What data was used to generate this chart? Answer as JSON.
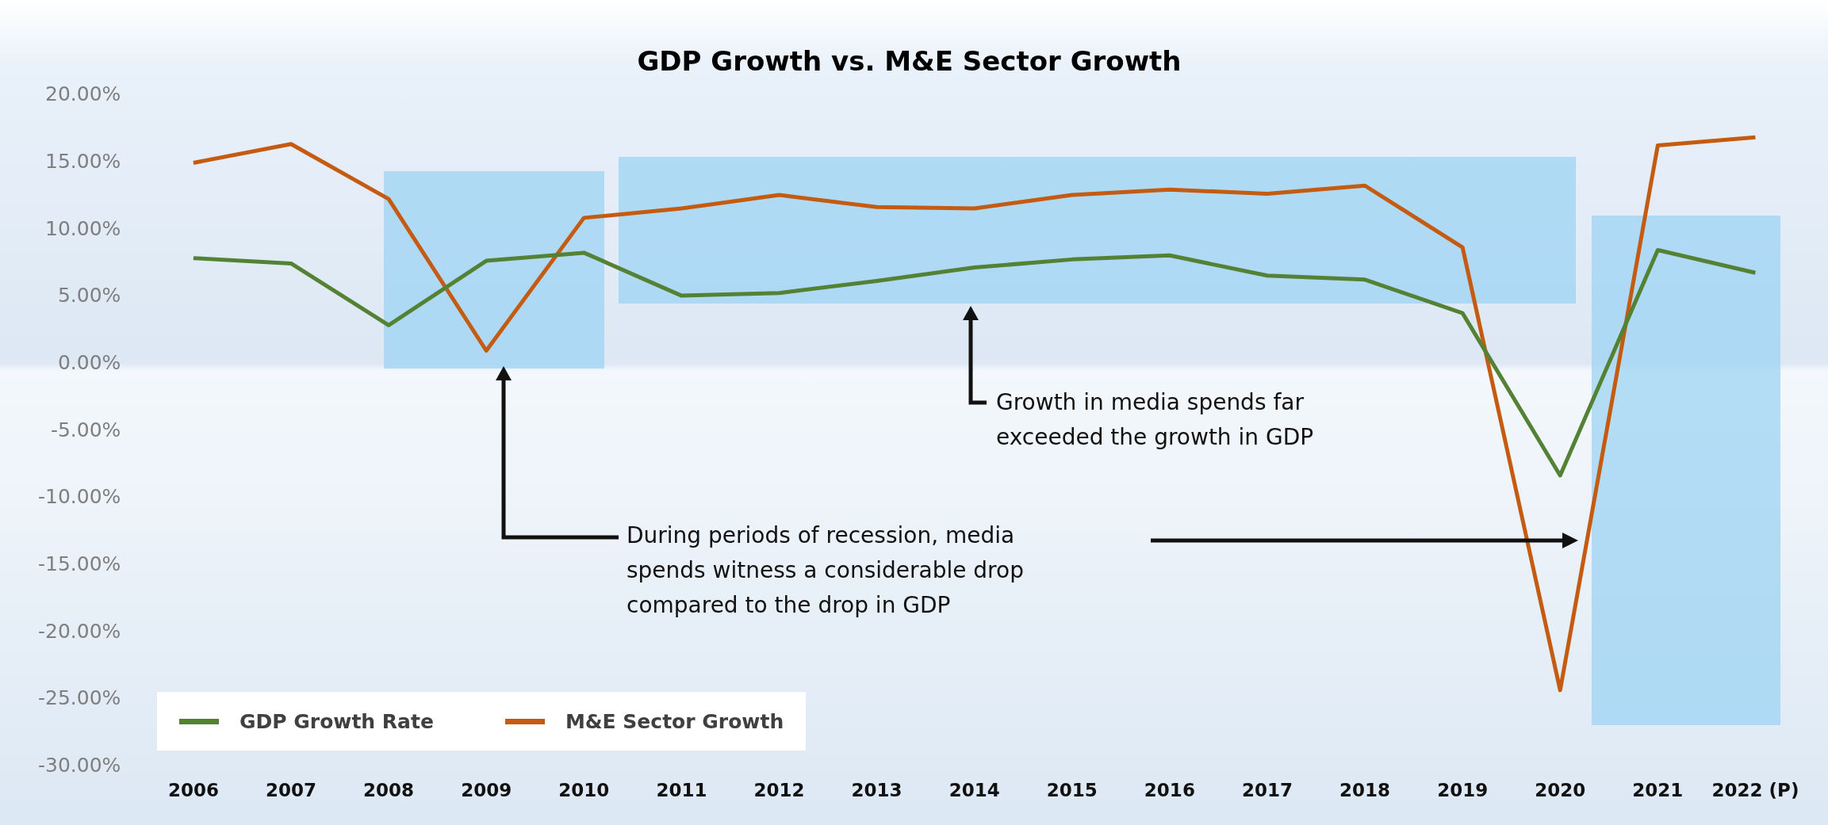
{
  "chart_data": {
    "type": "line",
    "title": "GDP Growth vs. M&E Sector Growth",
    "categories": [
      "2006",
      "2007",
      "2008",
      "2009",
      "2010",
      "2011",
      "2012",
      "2013",
      "2014",
      "2015",
      "2016",
      "2017",
      "2018",
      "2019",
      "2020",
      "2021",
      "2022 (P)"
    ],
    "series": [
      {
        "name": "GDP Growth Rate",
        "color": "#548235",
        "values": [
          7.9,
          7.5,
          2.9,
          7.7,
          8.3,
          5.1,
          5.3,
          6.2,
          7.2,
          7.8,
          8.1,
          6.6,
          6.3,
          3.8,
          -8.3,
          8.5,
          6.8
        ]
      },
      {
        "name": "M&E Sector Growth",
        "color": "#c55a11",
        "values": [
          15.0,
          16.4,
          12.3,
          1.0,
          10.9,
          11.6,
          12.6,
          11.7,
          11.6,
          12.6,
          13.0,
          12.7,
          13.3,
          8.7,
          -24.3,
          16.3,
          16.9
        ]
      }
    ],
    "ylim": [
      -30,
      20
    ],
    "yticks": [
      {
        "value": -30,
        "label": "-30.00%"
      },
      {
        "value": -25,
        "label": "-25.00%"
      },
      {
        "value": -20,
        "label": "-20.00%"
      },
      {
        "value": -15,
        "label": "-15.00%"
      },
      {
        "value": -10,
        "label": "-10.00%"
      },
      {
        "value": -5,
        "label": "-5.00%"
      },
      {
        "value": 0,
        "label": "0.00%"
      },
      {
        "value": 5,
        "label": "5.00%"
      },
      {
        "value": 10,
        "label": "10.00%"
      },
      {
        "value": 15,
        "label": "15.00%"
      },
      {
        "value": 20,
        "label": "20.00%"
      }
    ],
    "legend": "bottom left",
    "marker": "none",
    "line_style": "solid",
    "annotations": [
      "During periods of recession, media spends witness a considerable drop compared to the drop in GDP",
      "Growth in media spends far exceeded the growth in GDP"
    ]
  }
}
